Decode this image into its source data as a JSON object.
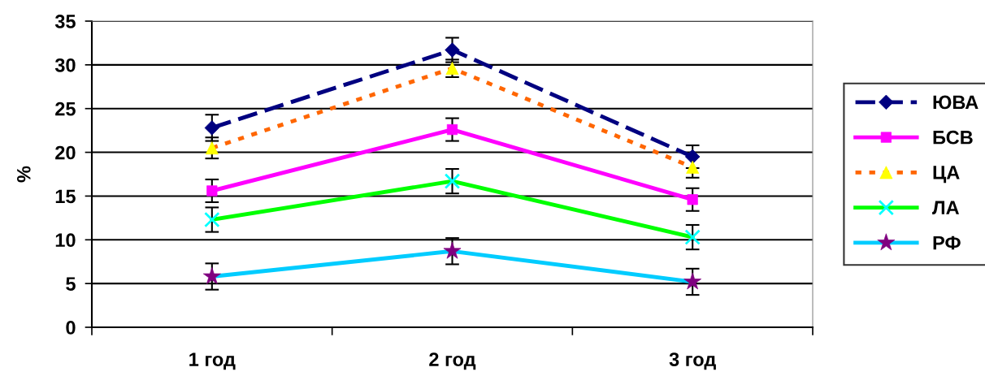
{
  "chart_data": {
    "type": "line",
    "ylabel": "%",
    "categories": [
      "1 год",
      "2 год",
      "3 год"
    ],
    "ylim": [
      0,
      35
    ],
    "yticks": [
      0,
      5,
      10,
      15,
      20,
      25,
      30,
      35
    ],
    "grid": "y",
    "legend": "right",
    "series": [
      {
        "name": "ЮВА",
        "color": "#000080",
        "colors": [
          "#000080",
          "#000080",
          "#000080"
        ],
        "marker": "diamond",
        "line_style": "dashed",
        "values": [
          22.8,
          31.7,
          19.5
        ],
        "errors": [
          1.5,
          1.4,
          1.3
        ]
      },
      {
        "name": "БСВ",
        "color": "#ff00ff",
        "colors": [
          "#ff00ff",
          "#ff00ff",
          "#ff00ff"
        ],
        "marker": "square",
        "line_style": "solid",
        "values": [
          15.6,
          22.6,
          14.6
        ],
        "errors": [
          1.3,
          1.3,
          1.3
        ]
      },
      {
        "name": "ЦА",
        "color": "#ff6600",
        "colors": [
          "#ffff00",
          "#ffff00",
          "#ffff00"
        ],
        "marker": "triangle",
        "line_style": "dotted",
        "values": [
          20.5,
          29.6,
          18.3
        ],
        "errors": [
          1.2,
          1.0,
          1.2
        ]
      },
      {
        "name": "ЛА",
        "color": "#00ff00",
        "colors": [
          "#00ffff",
          "#00ffff",
          "#00ffff"
        ],
        "marker": "cross",
        "line_style": "solid",
        "values": [
          12.3,
          16.7,
          10.3
        ],
        "errors": [
          1.4,
          1.4,
          1.4
        ]
      },
      {
        "name": "РФ",
        "color": "#00ccff",
        "colors": [
          "#800080",
          "#800080",
          "#800080"
        ],
        "marker": "star",
        "line_style": "solid",
        "values": [
          5.8,
          8.7,
          5.2
        ],
        "errors": [
          1.5,
          1.5,
          1.5
        ]
      }
    ]
  }
}
